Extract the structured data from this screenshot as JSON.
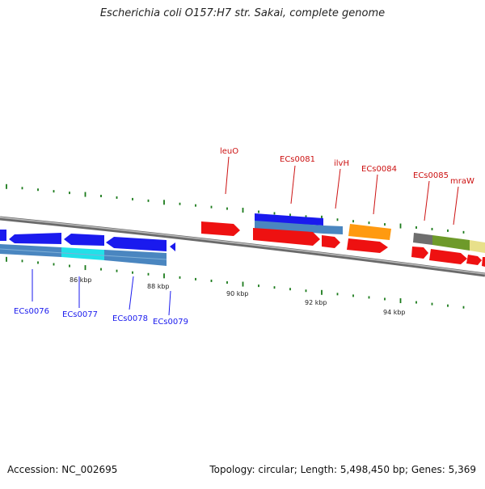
{
  "title": "Escherichia coli O157:H7 str. Sakai, complete genome",
  "footer": {
    "accession": "Accession: NC_002695",
    "summary": "Topology: circular; Length: 5,498,450 bp; Genes: 5,369"
  },
  "colors": {
    "backbone": "#808080",
    "tick": "#1a7a1a",
    "blue": "#1a1aee",
    "steel": "#4a86c0",
    "cyan": "#22e0e8",
    "red": "#ee1111",
    "orange": "#ff9a10",
    "gray": "#6e6e6e",
    "olive": "#6e9a2a",
    "khaki": "#e8e08a",
    "label_blue": "#1a1aee",
    "label_red": "#cc1111"
  },
  "scale_labels": [
    "86 kbp",
    "88 kbp",
    "90 kbp",
    "92 kbp",
    "94 kbp"
  ],
  "genes": {
    "ECs0076": "ECs0076",
    "ECs0077": "ECs0077",
    "ECs0078": "ECs0078",
    "ECs0079": "ECs0079",
    "leuO": "leuO",
    "ECs0081": "ECs0081",
    "ilvH": "ilvH",
    "ECs0084": "ECs0084",
    "ECs0085": "ECs0085",
    "mraW": "mraW"
  }
}
